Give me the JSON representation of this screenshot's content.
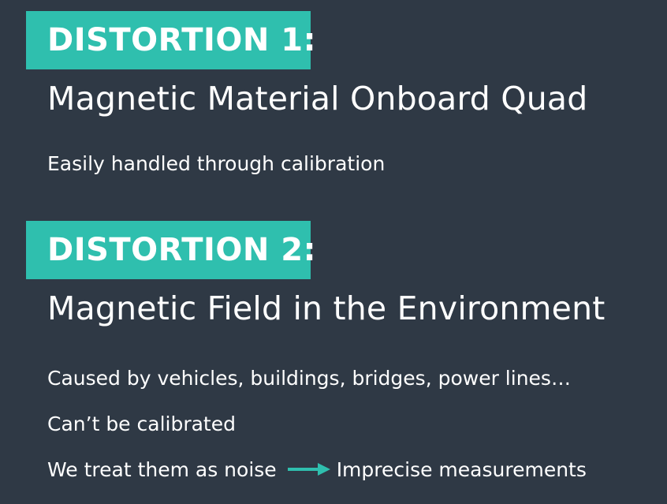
{
  "section1": {
    "badge": "DISTORTION 1:",
    "heading": "Magnetic Material Onboard Quad",
    "notes": [
      "Easily handled through calibration"
    ]
  },
  "section2": {
    "badge": "DISTORTION 2:",
    "heading": "Magnetic Field in the Environment",
    "notes": [
      "Caused by vehicles, buildings, bridges, power lines…",
      "Can’t be calibrated"
    ],
    "conclusion": {
      "left": "We treat them as noise",
      "arrow_icon": "right-arrow-icon",
      "right": "Imprecise measurements"
    }
  },
  "colors": {
    "background": "#2f3945",
    "accent": "#2fbfae",
    "text": "#ffffff"
  }
}
